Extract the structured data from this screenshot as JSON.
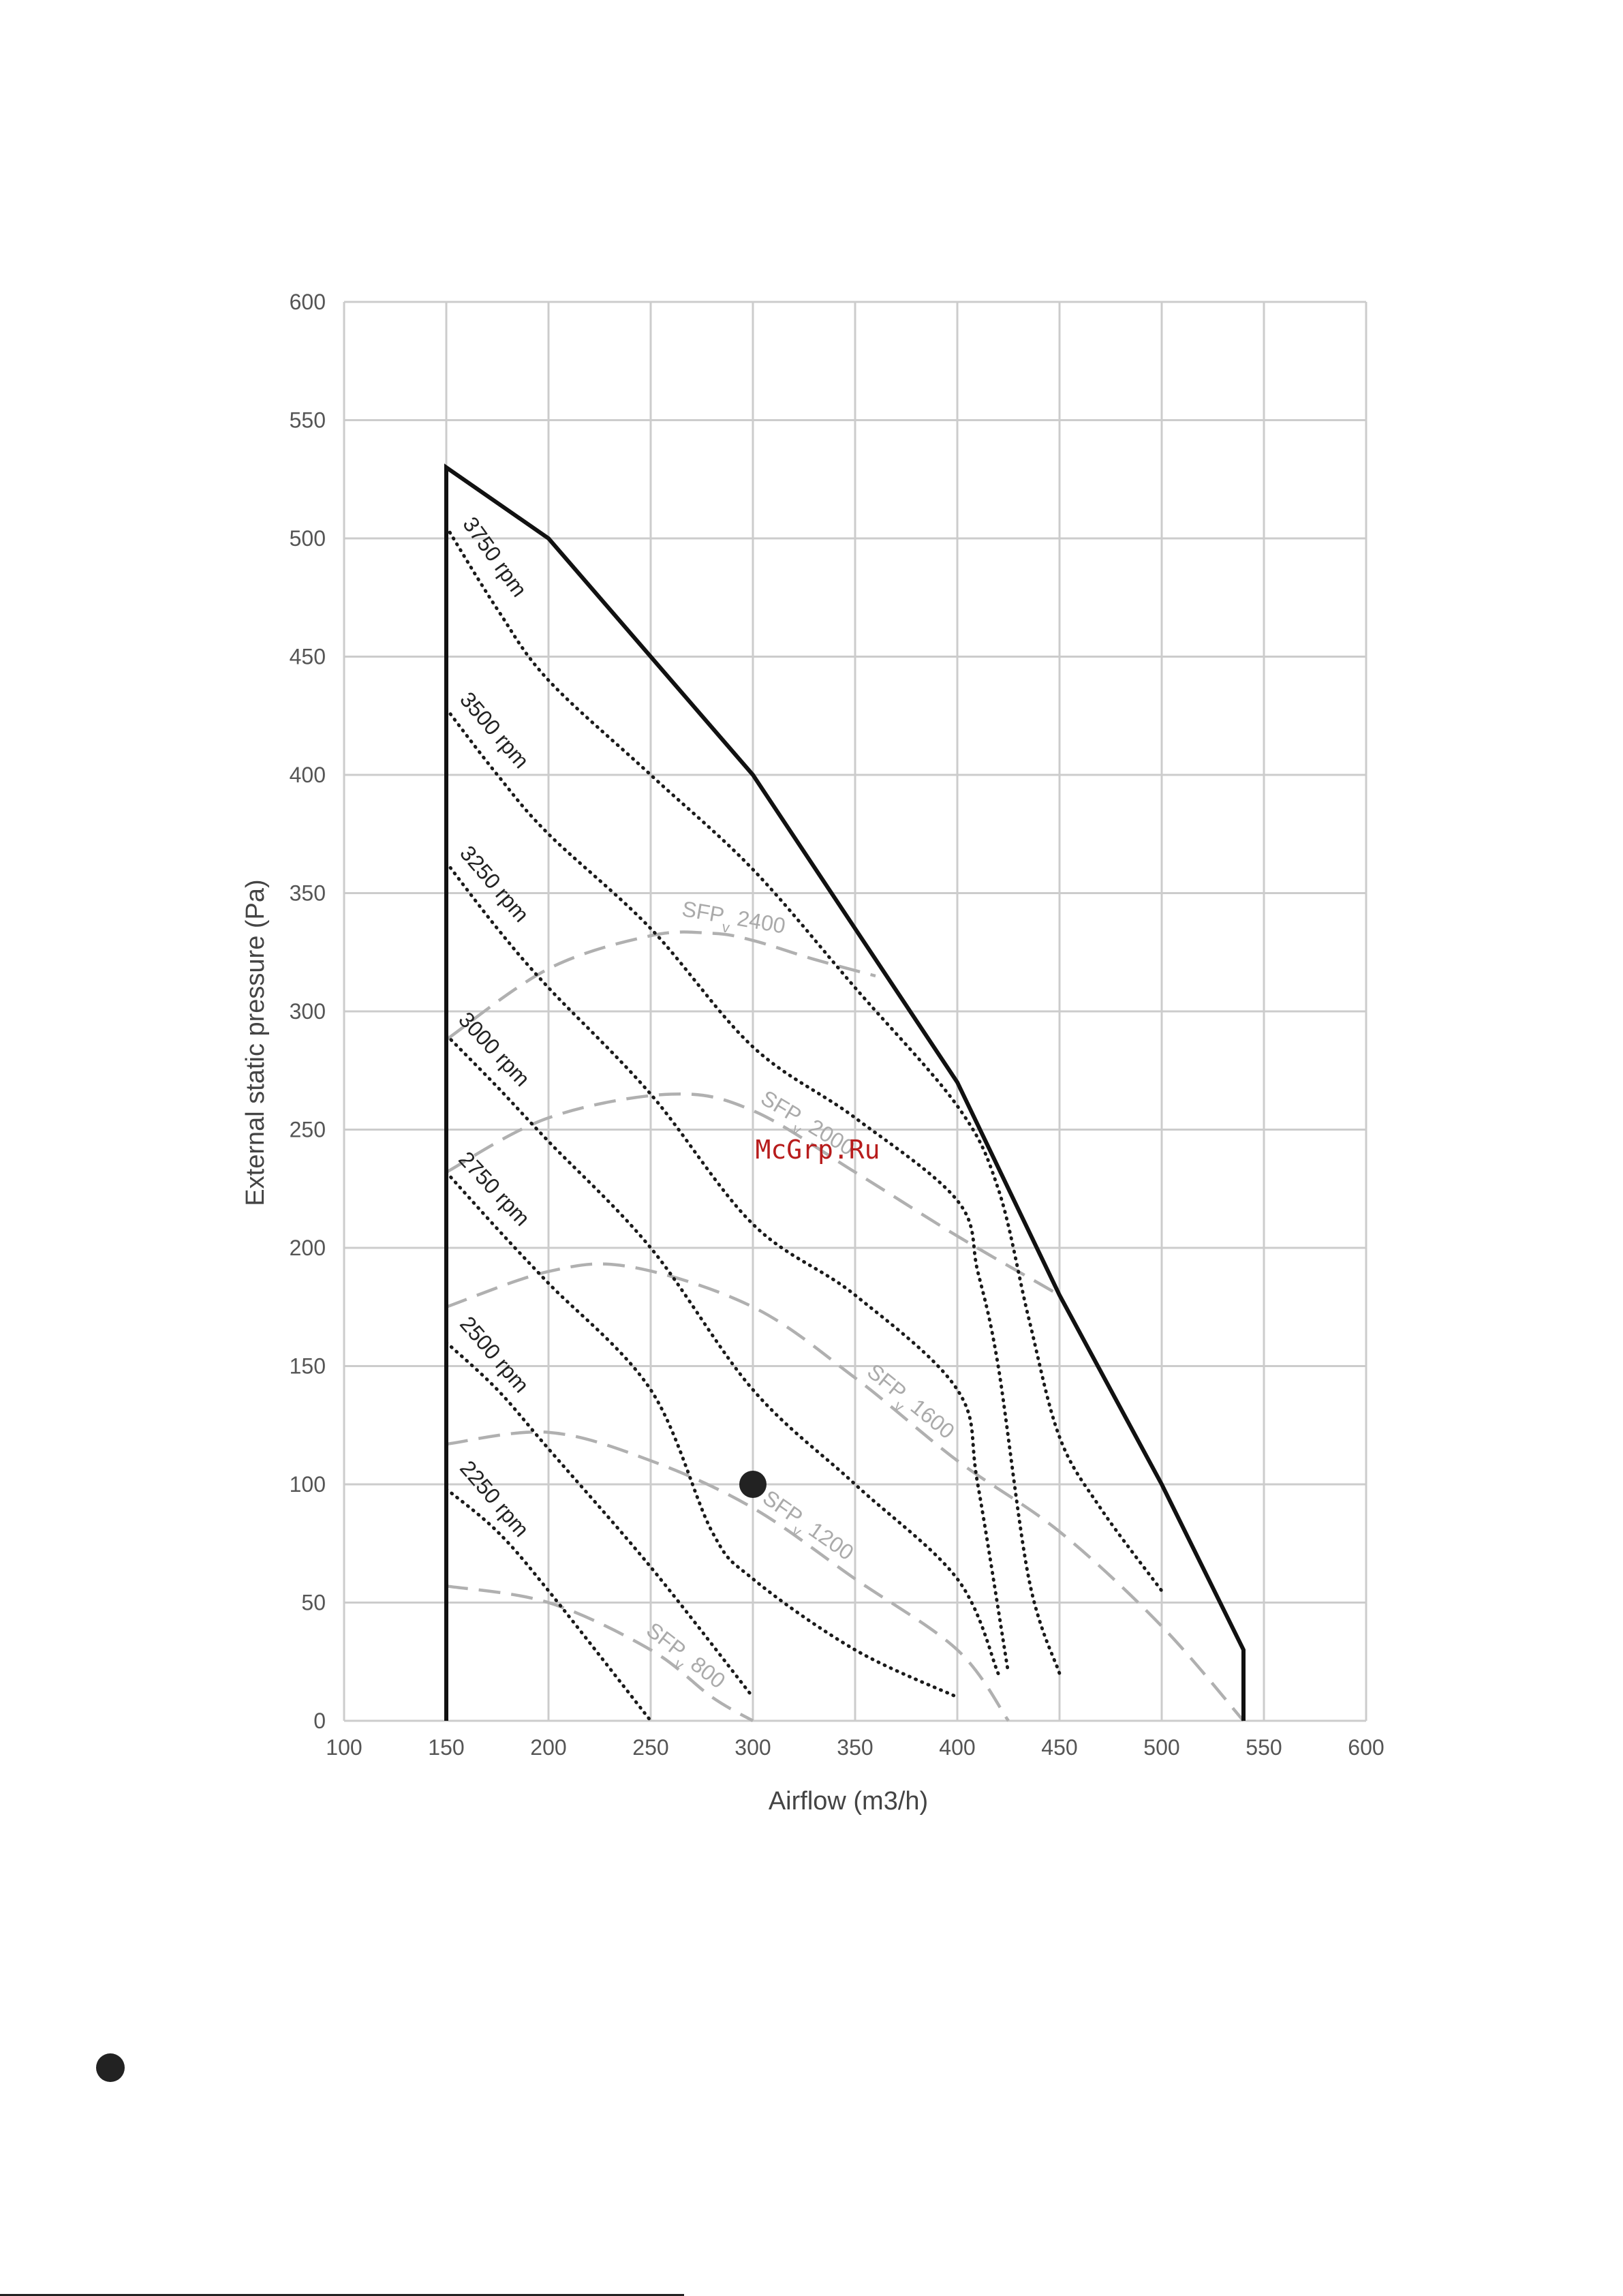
{
  "chart_data": {
    "type": "line",
    "xlabel": "Airflow (m3/h)",
    "ylabel": "External static pressure  (Pa)",
    "xlim": [
      100,
      600
    ],
    "ylim": [
      0,
      600
    ],
    "xticks": [
      100,
      150,
      200,
      250,
      300,
      350,
      400,
      450,
      500,
      550,
      600
    ],
    "yticks": [
      0,
      50,
      100,
      150,
      200,
      250,
      300,
      350,
      400,
      450,
      500,
      550,
      600
    ],
    "grid": true,
    "envelope": {
      "x": [
        150,
        150,
        200,
        300,
        400,
        450,
        500,
        540,
        540
      ],
      "y": [
        0,
        530,
        500,
        400,
        270,
        180,
        100,
        30,
        0
      ]
    },
    "rpm_curves": [
      {
        "label": "3750 rpm",
        "x": [
          150,
          175,
          200,
          250,
          300,
          350,
          400,
          420,
          435,
          450,
          470,
          500
        ],
        "y": [
          505,
          470,
          440,
          400,
          360,
          310,
          260,
          225,
          170,
          120,
          90,
          55
        ]
      },
      {
        "label": "3500 rpm",
        "x": [
          150,
          175,
          200,
          250,
          300,
          350,
          400,
          410,
          420,
          435,
          450
        ],
        "y": [
          428,
          400,
          375,
          335,
          285,
          255,
          220,
          190,
          150,
          60,
          20
        ]
      },
      {
        "label": "3250 rpm",
        "x": [
          150,
          175,
          200,
          250,
          300,
          350,
          400,
          410,
          425
        ],
        "y": [
          363,
          335,
          310,
          265,
          210,
          180,
          140,
          100,
          20
        ]
      },
      {
        "label": "3000 rpm",
        "x": [
          150,
          175,
          200,
          250,
          300,
          350,
          400,
          420
        ],
        "y": [
          290,
          268,
          245,
          200,
          140,
          100,
          60,
          20
        ]
      },
      {
        "label": "2750 rpm",
        "x": [
          150,
          175,
          200,
          250,
          280,
          300,
          350,
          400
        ],
        "y": [
          232,
          208,
          185,
          140,
          80,
          60,
          30,
          10
        ]
      },
      {
        "label": "2500 rpm",
        "x": [
          150,
          175,
          200,
          250,
          300
        ],
        "y": [
          160,
          140,
          115,
          65,
          10
        ]
      },
      {
        "label": "2250 rpm",
        "x": [
          150,
          175,
          200,
          250
        ],
        "y": [
          98,
          80,
          55,
          0
        ]
      }
    ],
    "sfp_curves": [
      {
        "label": "SFP",
        "subscript": "v",
        "value": "2400",
        "x": [
          150,
          200,
          250,
          280,
          300,
          330,
          360
        ],
        "y": [
          288,
          318,
          332,
          333,
          330,
          322,
          315
        ]
      },
      {
        "label": "SFP",
        "subscript": "v",
        "value": "2000",
        "x": [
          150,
          200,
          260,
          300,
          350,
          400,
          450
        ],
        "y": [
          232,
          255,
          265,
          258,
          232,
          205,
          180
        ]
      },
      {
        "label": "SFP",
        "subscript": "v",
        "value": "1600",
        "x": [
          150,
          200,
          240,
          300,
          350,
          400,
          450,
          500,
          540
        ],
        "y": [
          175,
          190,
          192,
          175,
          145,
          110,
          80,
          40,
          0
        ]
      },
      {
        "label": "SFP",
        "subscript": "v",
        "value": "1200",
        "x": [
          150,
          200,
          250,
          300,
          350,
          400,
          425
        ],
        "y": [
          117,
          122,
          110,
          90,
          60,
          30,
          0
        ]
      },
      {
        "label": "SFP",
        "subscript": "v",
        "value": "800",
        "x": [
          150,
          200,
          250,
          280,
          300
        ],
        "y": [
          57,
          50,
          30,
          10,
          0
        ]
      }
    ],
    "operating_point": {
      "x": 300,
      "y": 100
    }
  },
  "watermark": "McGrp.Ru"
}
